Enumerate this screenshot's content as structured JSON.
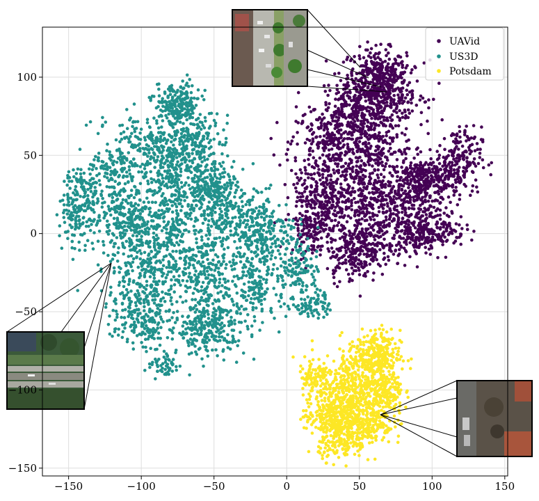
{
  "chart_data": {
    "type": "scatter",
    "title": "",
    "xlabel": "",
    "ylabel": "",
    "xlim": [
      -168,
      152
    ],
    "ylim": [
      -155,
      132
    ],
    "xticks": [
      -150,
      -100,
      -50,
      0,
      50,
      100,
      150
    ],
    "yticks": [
      -150,
      -100,
      -50,
      0,
      50,
      100
    ],
    "xtick_labels": [
      "−150",
      "−100",
      "−50",
      "0",
      "50",
      "100",
      "150"
    ],
    "ytick_labels": [
      "−150",
      "−100",
      "−50",
      "0",
      "50",
      "100"
    ],
    "grid": true,
    "legend_position": "top-right",
    "series": [
      {
        "name": "UAVid",
        "color": "#440154",
        "clusters": [
          {
            "cx": 62,
            "cy": 100,
            "sx": 10,
            "sy": 9,
            "n": 320
          },
          {
            "cx": 48,
            "cy": 80,
            "sx": 14,
            "sy": 10,
            "n": 260
          },
          {
            "cx": 30,
            "cy": 58,
            "sx": 14,
            "sy": 12,
            "n": 240
          },
          {
            "cx": 60,
            "cy": 55,
            "sx": 14,
            "sy": 14,
            "n": 260
          },
          {
            "cx": 95,
            "cy": 33,
            "sx": 12,
            "sy": 8,
            "n": 360
          },
          {
            "cx": 118,
            "cy": 48,
            "sx": 8,
            "sy": 10,
            "n": 160
          },
          {
            "cx": 25,
            "cy": 25,
            "sx": 10,
            "sy": 12,
            "n": 220
          },
          {
            "cx": 18,
            "cy": 5,
            "sx": 8,
            "sy": 10,
            "n": 160
          },
          {
            "cx": 50,
            "cy": 25,
            "sx": 12,
            "sy": 12,
            "n": 220
          },
          {
            "cx": 75,
            "cy": 15,
            "sx": 12,
            "sy": 10,
            "n": 200
          },
          {
            "cx": 103,
            "cy": 3,
            "sx": 10,
            "sy": 6,
            "n": 160
          },
          {
            "cx": 45,
            "cy": -15,
            "sx": 9,
            "sy": 8,
            "n": 160
          },
          {
            "cx": 87,
            "cy": -5,
            "sx": 8,
            "sy": 6,
            "n": 100
          },
          {
            "cx": 55,
            "cy": -5,
            "sx": 10,
            "sy": 8,
            "n": 140
          },
          {
            "cx": 75,
            "cy": 90,
            "sx": 10,
            "sy": 10,
            "n": 140
          }
        ]
      },
      {
        "name": "US3D",
        "color": "#21918c",
        "clusters": [
          {
            "cx": -75,
            "cy": 82,
            "sx": 8,
            "sy": 7,
            "n": 220
          },
          {
            "cx": -95,
            "cy": 55,
            "sx": 14,
            "sy": 12,
            "n": 200
          },
          {
            "cx": -75,
            "cy": 40,
            "sx": 10,
            "sy": 12,
            "n": 240
          },
          {
            "cx": -50,
            "cy": 30,
            "sx": 8,
            "sy": 8,
            "n": 200
          },
          {
            "cx": -120,
            "cy": 35,
            "sx": 12,
            "sy": 12,
            "n": 180
          },
          {
            "cx": -145,
            "cy": 10,
            "sx": 6,
            "sy": 8,
            "n": 120
          },
          {
            "cx": -110,
            "cy": 10,
            "sx": 12,
            "sy": 10,
            "n": 200
          },
          {
            "cx": -80,
            "cy": 5,
            "sx": 14,
            "sy": 12,
            "n": 240
          },
          {
            "cx": -40,
            "cy": 5,
            "sx": 14,
            "sy": 12,
            "n": 220
          },
          {
            "cx": -15,
            "cy": 0,
            "sx": 10,
            "sy": 12,
            "n": 220
          },
          {
            "cx": -100,
            "cy": -25,
            "sx": 14,
            "sy": 12,
            "n": 240
          },
          {
            "cx": -60,
            "cy": -25,
            "sx": 14,
            "sy": 12,
            "n": 240
          },
          {
            "cx": -20,
            "cy": -35,
            "sx": 10,
            "sy": 10,
            "n": 160
          },
          {
            "cx": -55,
            "cy": -60,
            "sx": 14,
            "sy": 9,
            "n": 280
          },
          {
            "cx": -100,
            "cy": -55,
            "sx": 10,
            "sy": 9,
            "n": 180
          },
          {
            "cx": 10,
            "cy": -20,
            "sx": 6,
            "sy": 10,
            "n": 100
          },
          {
            "cx": 18,
            "cy": -45,
            "sx": 6,
            "sy": 5,
            "n": 80
          },
          {
            "cx": -60,
            "cy": 60,
            "sx": 10,
            "sy": 8,
            "n": 140
          },
          {
            "cx": -140,
            "cy": 30,
            "sx": 6,
            "sy": 6,
            "n": 60
          },
          {
            "cx": -85,
            "cy": -85,
            "sx": 6,
            "sy": 4,
            "n": 50
          }
        ]
      },
      {
        "name": "Potsdam",
        "color": "#fde725",
        "clusters": [
          {
            "cx": 60,
            "cy": -78,
            "sx": 9,
            "sy": 8,
            "n": 300
          },
          {
            "cx": 45,
            "cy": -100,
            "sx": 12,
            "sy": 10,
            "n": 360
          },
          {
            "cx": 30,
            "cy": -118,
            "sx": 9,
            "sy": 7,
            "n": 240
          },
          {
            "cx": 55,
            "cy": -120,
            "sx": 9,
            "sy": 8,
            "n": 240
          },
          {
            "cx": 68,
            "cy": -100,
            "sx": 6,
            "sy": 8,
            "n": 150
          },
          {
            "cx": 38,
            "cy": -135,
            "sx": 8,
            "sy": 5,
            "n": 120
          },
          {
            "cx": 20,
            "cy": -95,
            "sx": 6,
            "sy": 8,
            "n": 100
          }
        ]
      }
    ]
  }
}
